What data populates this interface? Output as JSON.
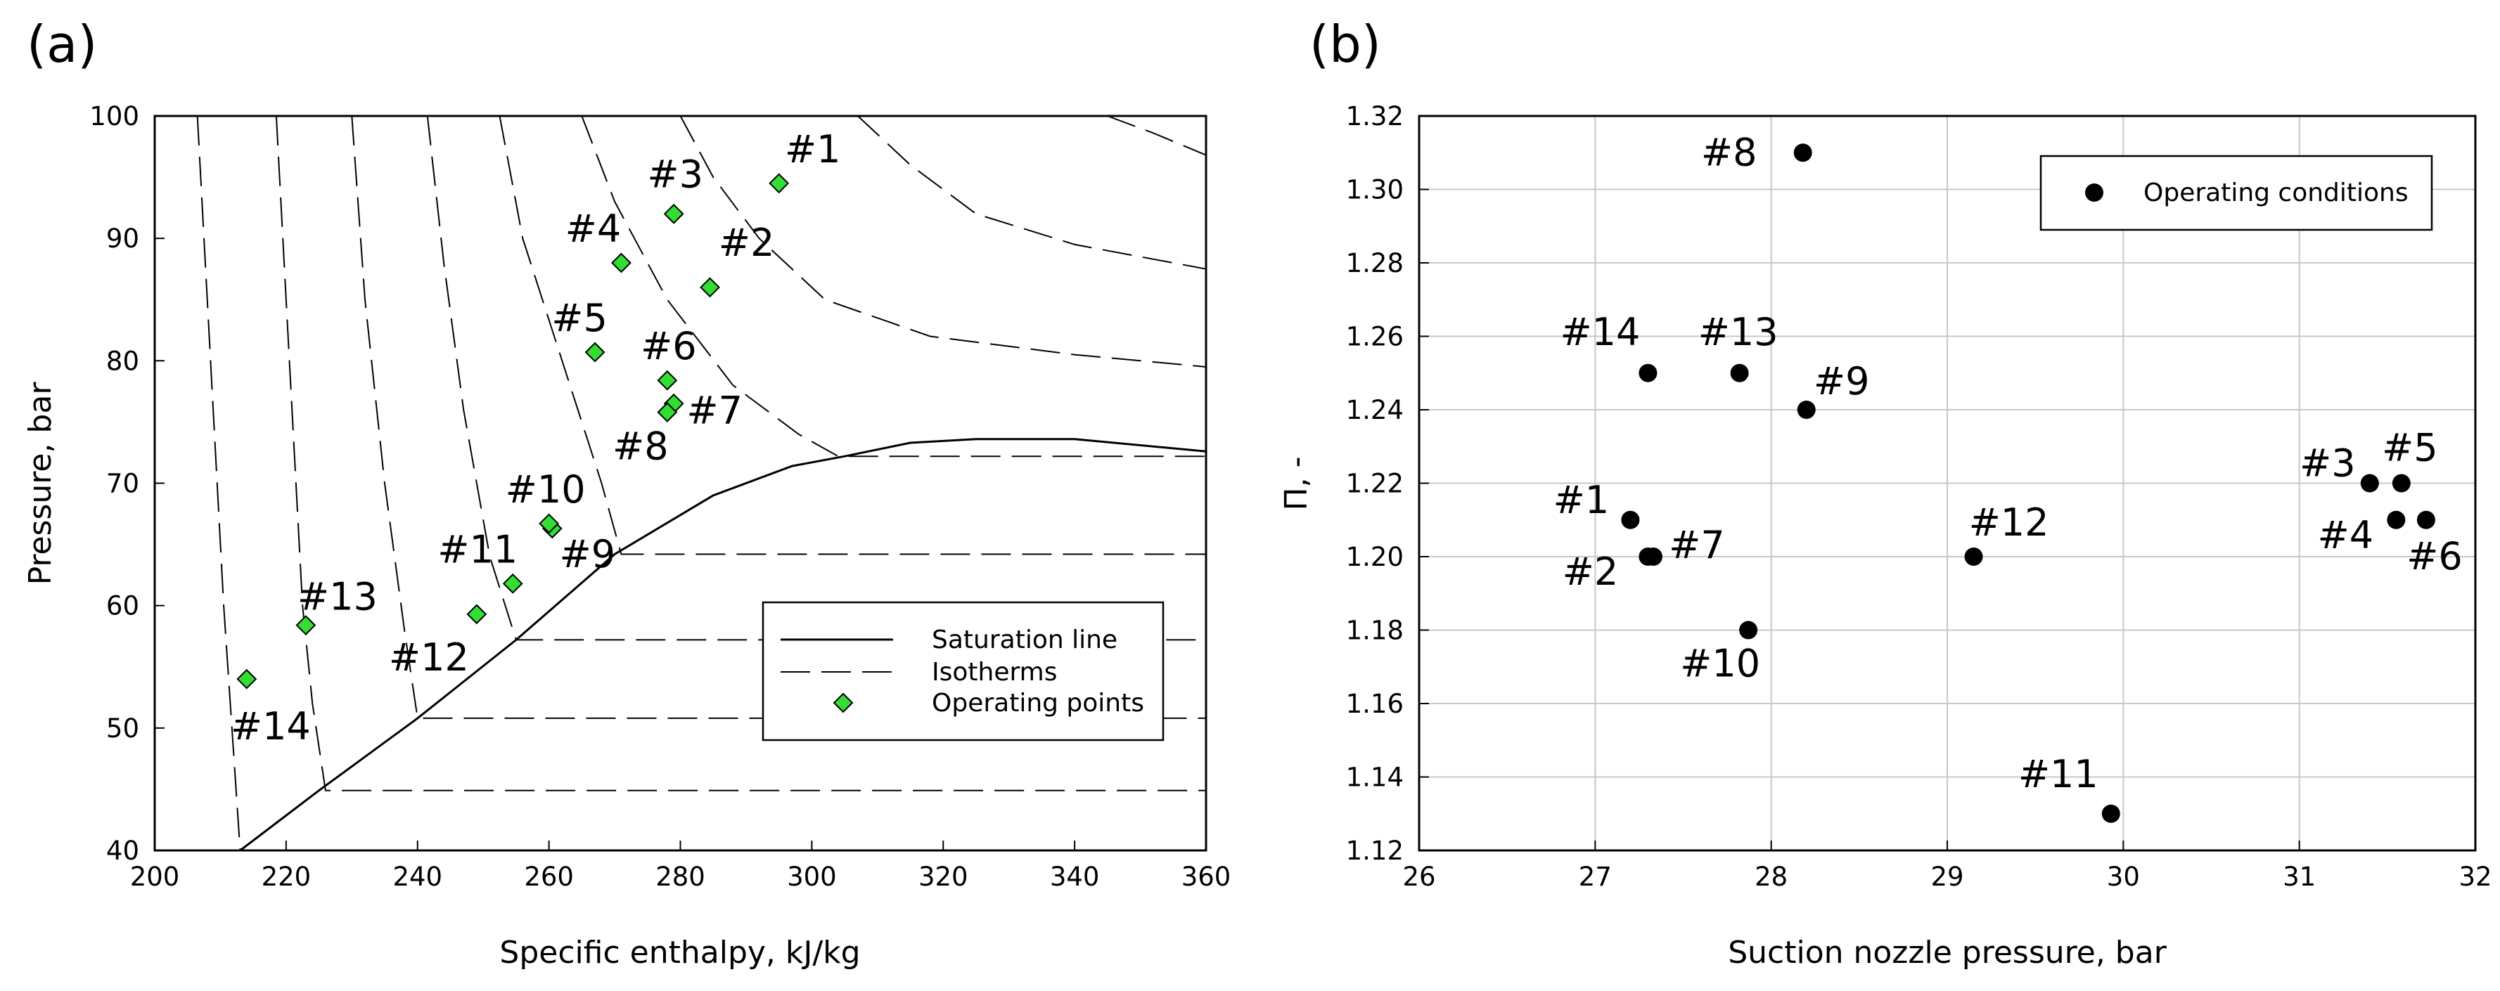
{
  "chart_data": [
    {
      "panel": "(a)",
      "type": "scatter",
      "xlabel": "Specific enthalpy, kJ/kg",
      "ylabel": "Pressure, bar",
      "xlim": [
        200,
        360
      ],
      "ylim": [
        40,
        100
      ],
      "xticks": [
        "200",
        "220",
        "240",
        "260",
        "280",
        "300",
        "320",
        "340",
        "360"
      ],
      "yticks": [
        "40",
        "50",
        "60",
        "70",
        "80",
        "90",
        "100"
      ],
      "grid": false,
      "legend_position": "lower-right",
      "legend": [
        "Saturation line",
        "Isotherms",
        "Operating points"
      ],
      "saturation_line": {
        "name": "Saturation line",
        "x": [
          213,
          225,
          240,
          255,
          270,
          285,
          297,
          305,
          315,
          325,
          340,
          360
        ],
        "y": [
          40,
          44.9,
          50.8,
          57.2,
          64.2,
          69.0,
          71.4,
          72.2,
          73.3,
          73.6,
          73.6,
          72.6
        ]
      },
      "isotherms": [
        {
          "x": [
            206.5,
            208.5,
            210.5,
            213
          ],
          "y": [
            100,
            80,
            60,
            40
          ]
        },
        {
          "x": [
            218.5,
            220.5,
            222.5,
            224,
            226,
            360
          ],
          "y": [
            100,
            80,
            60,
            52,
            44.9,
            44.9
          ]
        },
        {
          "x": [
            230,
            232,
            235,
            238,
            240,
            360
          ],
          "y": [
            100,
            85,
            70,
            58,
            50.8,
            50.8
          ]
        },
        {
          "x": [
            241.5,
            244,
            247,
            251,
            255,
            360
          ],
          "y": [
            100,
            88,
            76,
            64,
            57.2,
            57.2
          ]
        },
        {
          "x": [
            252.5,
            256,
            262,
            268,
            271,
            360
          ],
          "y": [
            100,
            90,
            80,
            70,
            64.2,
            64.2
          ]
        },
        {
          "x": [
            265,
            270,
            278,
            288,
            298,
            304,
            360
          ],
          "y": [
            100,
            93,
            85,
            78,
            74,
            72.2,
            72.2
          ]
        },
        {
          "x": [
            280,
            285,
            292,
            302,
            318,
            340,
            360
          ],
          "y": [
            100,
            95,
            90,
            85,
            82,
            80.5,
            79.5
          ]
        },
        {
          "x": [
            307,
            315,
            325,
            340,
            360
          ],
          "y": [
            100,
            96,
            92,
            89.5,
            87.5
          ]
        },
        {
          "x": [
            345,
            352,
            360
          ],
          "y": [
            100,
            98.6,
            96.8
          ]
        }
      ],
      "series": [
        {
          "name": "Operating points",
          "color": "#33dd33",
          "points": [
            {
              "label": "#1",
              "x": 295,
              "y": 94.5
            },
            {
              "label": "#2",
              "x": 284.5,
              "y": 86
            },
            {
              "label": "#3",
              "x": 279,
              "y": 92
            },
            {
              "label": "#4",
              "x": 271,
              "y": 88
            },
            {
              "label": "#5",
              "x": 267,
              "y": 80.7
            },
            {
              "label": "#6",
              "x": 278,
              "y": 78.4
            },
            {
              "label": "#7",
              "x": 279,
              "y": 76.5
            },
            {
              "label": "#8",
              "x": 278,
              "y": 75.8
            },
            {
              "label": "#9",
              "x": 260.5,
              "y": 66.3
            },
            {
              "label": "#10",
              "x": 260,
              "y": 66.7
            },
            {
              "label": "#11",
              "x": 254.5,
              "y": 61.8
            },
            {
              "label": "#12",
              "x": 249,
              "y": 59.3
            },
            {
              "label": "#13",
              "x": 223,
              "y": 58.4
            },
            {
              "label": "#14",
              "x": 214,
              "y": 54
            }
          ]
        }
      ]
    },
    {
      "panel": "(b)",
      "type": "scatter",
      "xlabel": "Suction nozzle pressure, bar",
      "ylabel": "Π, -",
      "xlim": [
        26,
        32
      ],
      "ylim": [
        1.12,
        1.32
      ],
      "xticks": [
        "26",
        "27",
        "28",
        "29",
        "30",
        "31",
        "32"
      ],
      "yticks": [
        "1.12",
        "1.14",
        "1.16",
        "1.18",
        "1.20",
        "1.22",
        "1.24",
        "1.26",
        "1.28",
        "1.30",
        "1.32"
      ],
      "grid": true,
      "legend_position": "top-right",
      "legend": [
        "Operating conditions"
      ],
      "series": [
        {
          "name": "Operating conditions",
          "color": "#000000",
          "points": [
            {
              "label": "#1",
              "x": 27.2,
              "y": 1.21
            },
            {
              "label": "#2",
              "x": 27.3,
              "y": 1.2
            },
            {
              "label": "#3",
              "x": 31.4,
              "y": 1.22
            },
            {
              "label": "#4",
              "x": 31.55,
              "y": 1.21
            },
            {
              "label": "#5",
              "x": 31.58,
              "y": 1.22
            },
            {
              "label": "#6",
              "x": 31.72,
              "y": 1.21
            },
            {
              "label": "#7",
              "x": 27.33,
              "y": 1.2
            },
            {
              "label": "#8",
              "x": 28.18,
              "y": 1.31
            },
            {
              "label": "#9",
              "x": 28.2,
              "y": 1.24
            },
            {
              "label": "#10",
              "x": 27.87,
              "y": 1.18
            },
            {
              "label": "#11",
              "x": 29.93,
              "y": 1.13
            },
            {
              "label": "#12",
              "x": 29.15,
              "y": 1.2
            },
            {
              "label": "#13",
              "x": 27.82,
              "y": 1.25
            },
            {
              "label": "#14",
              "x": 27.3,
              "y": 1.25
            }
          ]
        }
      ]
    }
  ]
}
